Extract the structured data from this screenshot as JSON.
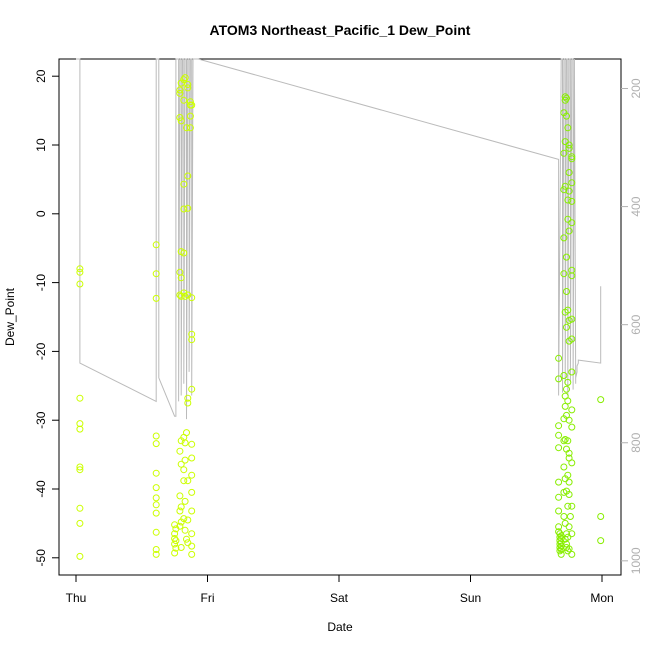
{
  "chart_data": {
    "type": "scatter",
    "title": "ATOM3 Northeast_Pacific_1 Dew_Point",
    "xlabel": "Date",
    "ylabel": "Dew_Point",
    "x_ticks": [
      "Thu",
      "Fri",
      "Sat",
      "Sun",
      "Mon"
    ],
    "y_ticks": [
      -50,
      -40,
      -30,
      -20,
      -10,
      0,
      10,
      20
    ],
    "ylim": [
      -52.5,
      22.5
    ],
    "right_axis": {
      "ticks": [
        200,
        400,
        600,
        800,
        1000
      ],
      "ylim": [
        1024,
        150
      ],
      "color": "#b0b0b0"
    },
    "grid": false,
    "series": [
      {
        "kind": "points",
        "color": "#ccff00",
        "points": [
          [
            0.03,
            -8
          ],
          [
            0.03,
            -8.5
          ],
          [
            0.03,
            -10.2
          ],
          [
            0.03,
            -26.8
          ],
          [
            0.03,
            -30.5
          ],
          [
            0.03,
            -31.3
          ],
          [
            0.03,
            -36.8
          ],
          [
            0.03,
            -37.2
          ],
          [
            0.03,
            -42.8
          ],
          [
            0.03,
            -45
          ],
          [
            0.03,
            -49.8
          ],
          [
            0.61,
            -4.5
          ],
          [
            0.61,
            -8.7
          ],
          [
            0.61,
            -12.3
          ],
          [
            0.61,
            -32.3
          ],
          [
            0.61,
            -33.4
          ],
          [
            0.61,
            -37.7
          ],
          [
            0.61,
            -39.8
          ],
          [
            0.61,
            -41.3
          ],
          [
            0.61,
            -42.3
          ],
          [
            0.61,
            -43.5
          ],
          [
            0.61,
            -46.3
          ],
          [
            0.61,
            -48.8
          ],
          [
            0.61,
            -49.5
          ],
          [
            0.75,
            -45.2
          ],
          [
            0.75,
            -46.5
          ],
          [
            0.75,
            -47.2
          ],
          [
            0.75,
            -48
          ],
          [
            0.75,
            -49.3
          ],
          [
            0.76,
            -45.8
          ],
          [
            0.76,
            -47.5
          ],
          [
            0.76,
            -48.6
          ],
          [
            0.79,
            18
          ],
          [
            0.79,
            17.5
          ],
          [
            0.79,
            14
          ],
          [
            0.79,
            -8.5
          ],
          [
            0.79,
            -11.8
          ],
          [
            0.79,
            -34.5
          ],
          [
            0.79,
            -41
          ],
          [
            0.79,
            -43.2
          ],
          [
            0.79,
            -45.4
          ],
          [
            0.8,
            19
          ],
          [
            0.8,
            13.5
          ],
          [
            0.8,
            -5.5
          ],
          [
            0.8,
            -9.3
          ],
          [
            0.8,
            -12
          ],
          [
            0.8,
            -33
          ],
          [
            0.8,
            -36.4
          ],
          [
            0.8,
            -42.6
          ],
          [
            0.8,
            -44.8
          ],
          [
            0.8,
            -48.5
          ],
          [
            0.82,
            19.5
          ],
          [
            0.82,
            16.5
          ],
          [
            0.82,
            4.3
          ],
          [
            0.82,
            0.7
          ],
          [
            0.82,
            -5.7
          ],
          [
            0.82,
            -11.5
          ],
          [
            0.82,
            -32.5
          ],
          [
            0.82,
            -37.2
          ],
          [
            0.82,
            -38.8
          ],
          [
            0.82,
            -44.3
          ],
          [
            0.83,
            19.8
          ],
          [
            0.83,
            -12
          ],
          [
            0.83,
            -33.3
          ],
          [
            0.83,
            -35.8
          ],
          [
            0.83,
            -41.8
          ],
          [
            0.83,
            -46
          ],
          [
            0.84,
            12.5
          ],
          [
            0.84,
            -31.8
          ],
          [
            0.84,
            -47.3
          ],
          [
            0.85,
            18.8
          ],
          [
            0.85,
            18.3
          ],
          [
            0.85,
            5.5
          ],
          [
            0.85,
            0.8
          ],
          [
            0.85,
            -11.8
          ],
          [
            0.85,
            -26.8
          ],
          [
            0.85,
            -27.5
          ],
          [
            0.85,
            -38.8
          ],
          [
            0.85,
            -44.5
          ],
          [
            0.85,
            -47.8
          ],
          [
            0.87,
            16.3
          ],
          [
            0.87,
            15.8
          ],
          [
            0.87,
            14.2
          ],
          [
            0.87,
            12.5
          ],
          [
            0.88,
            15.8
          ],
          [
            0.88,
            -12.2
          ],
          [
            0.88,
            -17.5
          ],
          [
            0.88,
            -18.3
          ],
          [
            0.88,
            -25.5
          ],
          [
            0.88,
            -33.5
          ],
          [
            0.88,
            -35.5
          ],
          [
            0.88,
            -38
          ],
          [
            0.88,
            -40.5
          ],
          [
            0.88,
            -43.2
          ],
          [
            0.88,
            -46.5
          ],
          [
            0.88,
            -48.3
          ],
          [
            0.88,
            -49.5
          ]
        ]
      },
      {
        "kind": "points",
        "color": "#88ee00",
        "points": [
          [
            3.67,
            -21
          ],
          [
            3.67,
            -24
          ],
          [
            3.67,
            -30.8
          ],
          [
            3.67,
            -32.2
          ],
          [
            3.67,
            -34
          ],
          [
            3.67,
            -39
          ],
          [
            3.67,
            -41.2
          ],
          [
            3.67,
            -43.2
          ],
          [
            3.67,
            -45.5
          ],
          [
            3.67,
            -46.2
          ],
          [
            3.68,
            -46.5
          ],
          [
            3.68,
            -47
          ],
          [
            3.68,
            -47.5
          ],
          [
            3.68,
            -48
          ],
          [
            3.68,
            -48.5
          ],
          [
            3.68,
            -49
          ],
          [
            3.69,
            -46.8
          ],
          [
            3.69,
            -47.2
          ],
          [
            3.69,
            -47.8
          ],
          [
            3.69,
            -48.3
          ],
          [
            3.69,
            -48.8
          ],
          [
            3.69,
            -49.5
          ],
          [
            3.71,
            14.7
          ],
          [
            3.71,
            8.8
          ],
          [
            3.71,
            3.5
          ],
          [
            3.71,
            -3.5
          ],
          [
            3.71,
            -8.7
          ],
          [
            3.71,
            -23.5
          ],
          [
            3.71,
            -29.8
          ],
          [
            3.71,
            -33
          ],
          [
            3.71,
            -36.8
          ],
          [
            3.71,
            -40.5
          ],
          [
            3.71,
            -44
          ],
          [
            3.72,
            17
          ],
          [
            3.72,
            16.5
          ],
          [
            3.72,
            10.5
          ],
          [
            3.72,
            4
          ],
          [
            3.72,
            -14.3
          ],
          [
            3.72,
            -26.5
          ],
          [
            3.72,
            -28
          ],
          [
            3.72,
            -32.8
          ],
          [
            3.72,
            -38.5
          ],
          [
            3.72,
            -45
          ],
          [
            3.72,
            -47.3
          ],
          [
            3.73,
            16.8
          ],
          [
            3.73,
            14.2
          ],
          [
            3.73,
            -6.3
          ],
          [
            3.73,
            -11.3
          ],
          [
            3.73,
            -16.5
          ],
          [
            3.73,
            -25.5
          ],
          [
            3.73,
            -29.3
          ],
          [
            3.73,
            -34.2
          ],
          [
            3.73,
            -40.3
          ],
          [
            3.73,
            -46.5
          ],
          [
            3.73,
            -48.5
          ],
          [
            3.74,
            12.5
          ],
          [
            3.74,
            2
          ],
          [
            3.74,
            -0.8
          ],
          [
            3.74,
            -14
          ],
          [
            3.74,
            -24.5
          ],
          [
            3.74,
            -27.2
          ],
          [
            3.74,
            -38
          ],
          [
            3.74,
            -42.5
          ],
          [
            3.74,
            -47
          ],
          [
            3.74,
            -49
          ],
          [
            3.75,
            10
          ],
          [
            3.75,
            9.5
          ],
          [
            3.75,
            6
          ],
          [
            3.75,
            3.3
          ],
          [
            3.75,
            -2.5
          ],
          [
            3.75,
            -15.5
          ],
          [
            3.75,
            -18.5
          ],
          [
            3.75,
            -30
          ],
          [
            3.75,
            -35.5
          ],
          [
            3.75,
            -39
          ],
          [
            3.75,
            -45.5
          ],
          [
            3.75,
            -48.7
          ],
          [
            3.77,
            8.3
          ],
          [
            3.77,
            8
          ],
          [
            3.77,
            4.5
          ],
          [
            3.77,
            1.8
          ],
          [
            3.77,
            -1.3
          ],
          [
            3.77,
            -8.2
          ],
          [
            3.77,
            -9
          ],
          [
            3.77,
            -15.3
          ],
          [
            3.77,
            -18.2
          ],
          [
            3.77,
            -23
          ],
          [
            3.77,
            -28.5
          ],
          [
            3.77,
            -31
          ],
          [
            3.77,
            -36.2
          ],
          [
            3.77,
            -42.5
          ],
          [
            3.77,
            -46.5
          ],
          [
            3.77,
            -49.5
          ],
          [
            3.75,
            -34.8
          ],
          [
            3.75,
            -40.8
          ],
          [
            3.73,
            -48
          ],
          [
            3.76,
            -44
          ],
          [
            3.74,
            -33
          ],
          [
            3.99,
            -27
          ],
          [
            3.99,
            -44
          ],
          [
            3.99,
            -47.5
          ]
        ]
      },
      {
        "kind": "line",
        "axis": "right",
        "color": "#bbbbbb",
        "points": [
          [
            0.0,
            150
          ],
          [
            0.03,
            150
          ],
          [
            0.03,
            665
          ],
          [
            0.61,
            730
          ],
          [
            0.61,
            150
          ],
          [
            0.63,
            150
          ],
          [
            0.63,
            690
          ],
          [
            0.75,
            755
          ],
          [
            0.76,
            755
          ],
          [
            0.76,
            150
          ],
          [
            0.78,
            150
          ],
          [
            0.78,
            730
          ],
          [
            0.79,
            150
          ],
          [
            0.8,
            150
          ],
          [
            0.8,
            720
          ],
          [
            0.81,
            150
          ],
          [
            0.82,
            150
          ],
          [
            0.82,
            700
          ],
          [
            0.83,
            150
          ],
          [
            0.84,
            150
          ],
          [
            0.84,
            760
          ],
          [
            0.85,
            150
          ],
          [
            0.86,
            150
          ],
          [
            0.86,
            680
          ],
          [
            0.87,
            150
          ],
          [
            0.88,
            150
          ],
          [
            0.88,
            720
          ],
          [
            0.89,
            150
          ],
          [
            0.93,
            150
          ],
          [
            3.67,
            320
          ],
          [
            3.67,
            720
          ],
          [
            3.69,
            150
          ],
          [
            3.7,
            150
          ],
          [
            3.7,
            715
          ],
          [
            3.71,
            150
          ],
          [
            3.72,
            150
          ],
          [
            3.72,
            700
          ],
          [
            3.73,
            150
          ],
          [
            3.74,
            150
          ],
          [
            3.74,
            720
          ],
          [
            3.75,
            150
          ],
          [
            3.76,
            150
          ],
          [
            3.76,
            695
          ],
          [
            3.77,
            150
          ],
          [
            3.78,
            150
          ],
          [
            3.78,
            710
          ],
          [
            3.79,
            150
          ],
          [
            3.79,
            150
          ],
          [
            3.8,
            700
          ],
          [
            3.8,
            690
          ],
          [
            3.81,
            680
          ],
          [
            3.81,
            670
          ],
          [
            3.82,
            665
          ],
          [
            3.82,
            660
          ],
          [
            3.99,
            665
          ],
          [
            3.99,
            535
          ]
        ]
      }
    ]
  }
}
